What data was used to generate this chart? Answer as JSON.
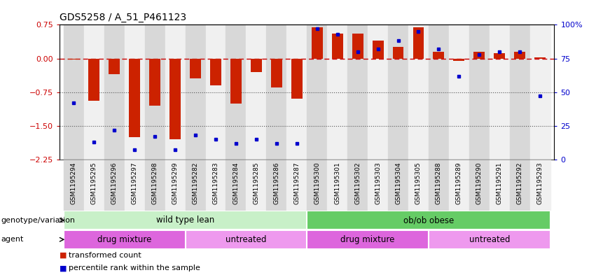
{
  "title": "GDS5258 / A_51_P461123",
  "samples": [
    "GSM1195294",
    "GSM1195295",
    "GSM1195296",
    "GSM1195297",
    "GSM1195298",
    "GSM1195299",
    "GSM1195282",
    "GSM1195283",
    "GSM1195284",
    "GSM1195285",
    "GSM1195286",
    "GSM1195287",
    "GSM1195300",
    "GSM1195301",
    "GSM1195302",
    "GSM1195303",
    "GSM1195304",
    "GSM1195305",
    "GSM1195288",
    "GSM1195289",
    "GSM1195290",
    "GSM1195291",
    "GSM1195292",
    "GSM1195293"
  ],
  "bar_values": [
    -0.02,
    -0.95,
    -0.35,
    -1.75,
    -1.05,
    -1.8,
    -0.45,
    -0.6,
    -1.0,
    -0.3,
    -0.65,
    -0.9,
    0.7,
    0.55,
    0.55,
    0.4,
    0.25,
    0.7,
    0.15,
    -0.05,
    0.15,
    0.12,
    0.15,
    0.02
  ],
  "percentile_values": [
    42,
    13,
    22,
    7,
    17,
    7,
    18,
    15,
    12,
    15,
    12,
    12,
    97,
    93,
    80,
    82,
    88,
    95,
    82,
    62,
    78,
    80,
    80,
    47
  ],
  "bar_color": "#cc2200",
  "dot_color": "#0000cc",
  "dashed_line_color": "#cc0000",
  "dotted_line_color": "#555555",
  "ylim_left": [
    -2.25,
    0.75
  ],
  "ylim_right": [
    0,
    100
  ],
  "yticks_left": [
    0.75,
    0,
    -0.75,
    -1.5,
    -2.25
  ],
  "yticks_right": [
    100,
    75,
    50,
    25,
    0
  ],
  "ytick_labels_right": [
    "100%",
    "75",
    "50",
    "25",
    "0"
  ],
  "groups": [
    {
      "label": "wild type lean",
      "start": 0,
      "end": 11,
      "color": "#c8f0c8"
    },
    {
      "label": "ob/ob obese",
      "start": 12,
      "end": 23,
      "color": "#66cc66"
    }
  ],
  "agents": [
    {
      "label": "drug mixture",
      "start": 0,
      "end": 5,
      "color": "#dd66dd"
    },
    {
      "label": "untreated",
      "start": 6,
      "end": 11,
      "color": "#ee99ee"
    },
    {
      "label": "drug mixture",
      "start": 12,
      "end": 17,
      "color": "#dd66dd"
    },
    {
      "label": "untreated",
      "start": 18,
      "end": 23,
      "color": "#ee99ee"
    }
  ],
  "genotype_label": "genotype/variation",
  "agent_label": "agent",
  "legend_bar_label": "transformed count",
  "legend_dot_label": "percentile rank within the sample",
  "bar_width": 0.55
}
